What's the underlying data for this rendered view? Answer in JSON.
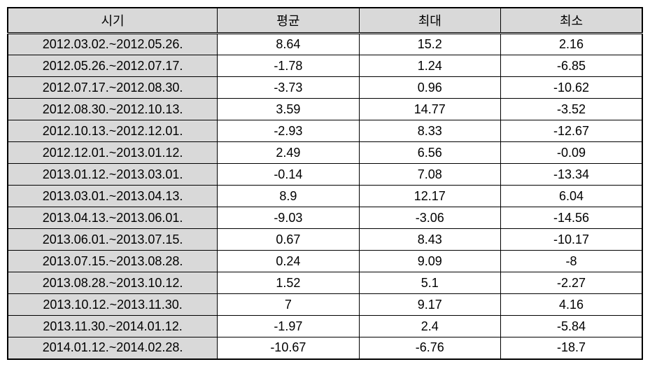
{
  "table": {
    "header_bg": "#d9d9d9",
    "period_bg": "#d9d9d9",
    "data_bg": "#ffffff",
    "border_color": "#000000",
    "font_size": 18,
    "columns": [
      "시기",
      "평균",
      "최대",
      "최소"
    ],
    "rows": [
      {
        "period": "2012.03.02.~2012.05.26.",
        "avg": "8.64",
        "max": "15.2",
        "min": "2.16"
      },
      {
        "period": "2012.05.26.~2012.07.17.",
        "avg": "-1.78",
        "max": "1.24",
        "min": "-6.85"
      },
      {
        "period": "2012.07.17.~2012.08.30.",
        "avg": "-3.73",
        "max": "0.96",
        "min": "-10.62"
      },
      {
        "period": "2012.08.30.~2012.10.13.",
        "avg": "3.59",
        "max": "14.77",
        "min": "-3.52"
      },
      {
        "period": "2012.10.13.~2012.12.01.",
        "avg": "-2.93",
        "max": "8.33",
        "min": "-12.67"
      },
      {
        "period": "2012.12.01.~2013.01.12.",
        "avg": "2.49",
        "max": "6.56",
        "min": "-0.09"
      },
      {
        "period": "2013.01.12.~2013.03.01.",
        "avg": "-0.14",
        "max": "7.08",
        "min": "-13.34"
      },
      {
        "period": "2013.03.01.~2013.04.13.",
        "avg": "8.9",
        "max": "12.17",
        "min": "6.04"
      },
      {
        "period": "2013.04.13.~2013.06.01.",
        "avg": "-9.03",
        "max": "-3.06",
        "min": "-14.56"
      },
      {
        "period": "2013.06.01.~2013.07.15.",
        "avg": "0.67",
        "max": "8.43",
        "min": "-10.17"
      },
      {
        "period": "2013.07.15.~2013.08.28.",
        "avg": "0.24",
        "max": "9.09",
        "min": "-8"
      },
      {
        "period": "2013.08.28.~2013.10.12.",
        "avg": "1.52",
        "max": "5.1",
        "min": "-2.27"
      },
      {
        "period": "2013.10.12.~2013.11.30.",
        "avg": "7",
        "max": "9.17",
        "min": "4.16"
      },
      {
        "period": "2013.11.30.~2014.01.12.",
        "avg": "-1.97",
        "max": "2.4",
        "min": "-5.84"
      },
      {
        "period": "2014.01.12.~2014.02.28.",
        "avg": "-10.67",
        "max": "-6.76",
        "min": "-18.7"
      }
    ]
  }
}
